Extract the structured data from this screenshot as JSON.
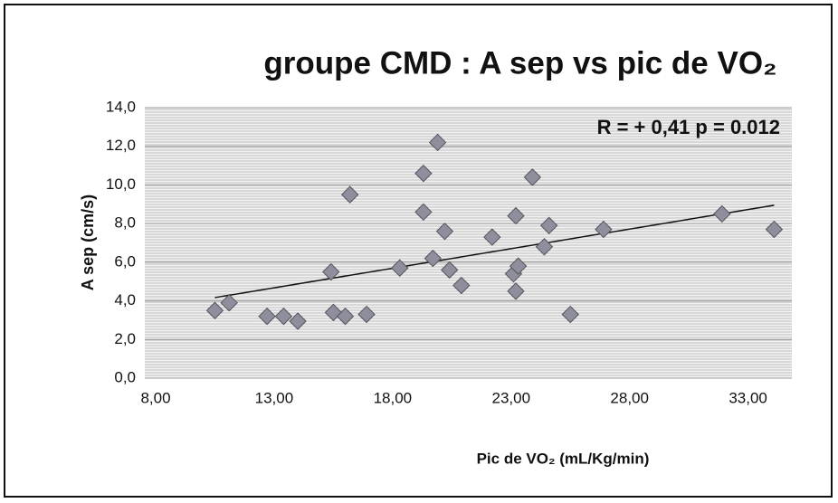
{
  "chart_data": {
    "type": "scatter",
    "title": "groupe CMD : A sep vs pic de VO₂",
    "x_label": "Pic de VO₂ (mL/Kg/min)",
    "y_label": "A sep (cm/s)",
    "annotation": "R = + 0,41  p = 0.012",
    "xlim": [
      8,
      35
    ],
    "ylim": [
      0,
      14
    ],
    "xticks": [
      {
        "value": 8,
        "label": "8,00"
      },
      {
        "value": 13,
        "label": "13,00"
      },
      {
        "value": 18,
        "label": "18,00"
      },
      {
        "value": 23,
        "label": "23,00"
      },
      {
        "value": 28,
        "label": "28,00"
      },
      {
        "value": 33,
        "label": "33,00"
      }
    ],
    "yticks": [
      {
        "value": 0,
        "label": "0,0"
      },
      {
        "value": 2,
        "label": "2,0"
      },
      {
        "value": 4,
        "label": "4,0"
      },
      {
        "value": 6,
        "label": "6,0"
      },
      {
        "value": 8,
        "label": "8,0"
      },
      {
        "value": 10,
        "label": "10,0"
      },
      {
        "value": 12,
        "label": "12,0"
      },
      {
        "value": 14,
        "label": "14,0"
      }
    ],
    "grid": true,
    "color": "#8e8e9c",
    "x": [
      10.5,
      11.1,
      12.7,
      13.4,
      14.0,
      15.4,
      15.5,
      16.0,
      16.2,
      16.9,
      18.3,
      19.3,
      19.3,
      19.9,
      20.2,
      19.7,
      20.4,
      20.9,
      22.2,
      23.2,
      23.1,
      23.3,
      23.2,
      23.9,
      24.4,
      24.6,
      25.5,
      26.9,
      31.9,
      34.1
    ],
    "values": [
      3.5,
      3.9,
      3.2,
      3.2,
      2.95,
      5.5,
      3.4,
      3.2,
      9.5,
      3.3,
      5.7,
      10.6,
      8.6,
      12.2,
      7.6,
      6.2,
      5.6,
      4.8,
      7.3,
      8.4,
      5.4,
      5.8,
      4.5,
      10.4,
      6.8,
      7.9,
      3.3,
      7.7,
      8.5,
      7.7
    ],
    "trendline": {
      "x": [
        10.5,
        34.1
      ],
      "values": [
        4.17,
        8.95
      ]
    }
  }
}
